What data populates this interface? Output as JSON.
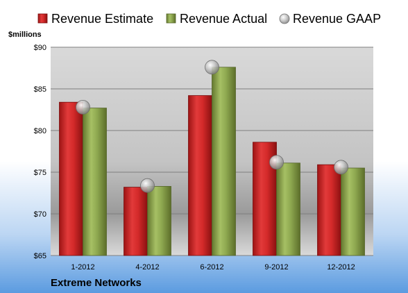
{
  "chart_data": {
    "type": "bar",
    "unit_label": "$millions",
    "company": "Extreme Networks",
    "categories": [
      "1-2012",
      "4-2012",
      "6-2012",
      "9-2012",
      "12-2012"
    ],
    "ylim": [
      65,
      90
    ],
    "yticks": [
      65,
      70,
      75,
      80,
      85,
      90
    ],
    "ytick_labels": [
      "$65",
      "$70",
      "$75",
      "$80",
      "$85",
      "$90"
    ],
    "grid": true,
    "legend_position": "top",
    "series": [
      {
        "name": "Revenue Estimate",
        "kind": "bar",
        "color": "#d42a2a",
        "values": [
          83.4,
          73.2,
          84.2,
          78.6,
          75.9
        ]
      },
      {
        "name": "Revenue Actual",
        "kind": "bar",
        "color": "#8ea850",
        "values": [
          82.7,
          73.3,
          87.6,
          76.1,
          75.5
        ]
      },
      {
        "name": "Revenue GAAP",
        "kind": "marker",
        "color": "#a8a8a8",
        "values": [
          82.8,
          73.4,
          87.6,
          76.2,
          75.6
        ]
      }
    ]
  }
}
